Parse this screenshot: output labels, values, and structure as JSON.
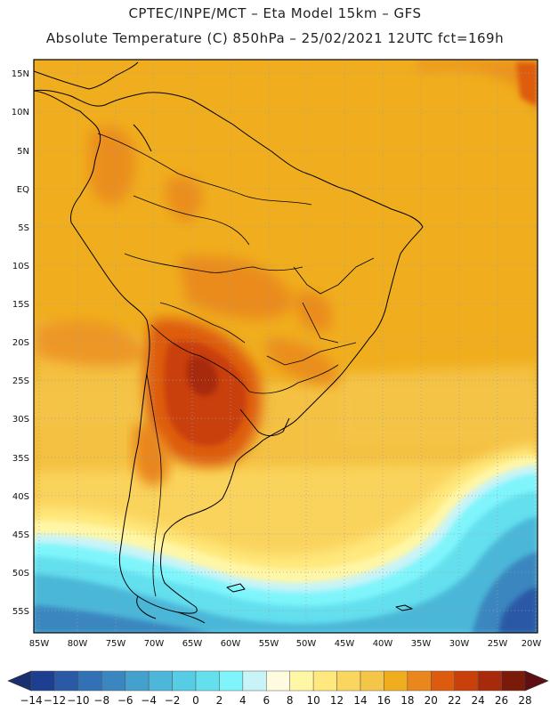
{
  "header": {
    "line1": "CPTEC/INPE/MCT  –   Eta Model 15km  –  GFS",
    "line2": "Absolute Temperature (C) 850hPa  –  25/02/2021  12UTC  fct=169h"
  },
  "map": {
    "lat_labels": [
      "15N",
      "10N",
      "5N",
      "EQ",
      "5S",
      "10S",
      "15S",
      "20S",
      "25S",
      "30S",
      "35S",
      "40S",
      "45S",
      "50S",
      "55S"
    ],
    "lon_labels": [
      "85W",
      "80W",
      "75W",
      "70W",
      "65W",
      "60W",
      "55W",
      "50W",
      "45W",
      "40W",
      "35W",
      "30W",
      "25W",
      "20W"
    ],
    "lat_range": [
      15,
      -55
    ],
    "lon_range": [
      -85,
      -20
    ]
  },
  "colorbar": {
    "labels": [
      "-14",
      "-12",
      "-10",
      "-8",
      "-6",
      "-4",
      "-2",
      "0",
      "2",
      "4",
      "6",
      "8",
      "10",
      "12",
      "14",
      "16",
      "18",
      "20",
      "22",
      "24",
      "26",
      "28"
    ],
    "colors": [
      "#1d3f8f",
      "#2a59a6",
      "#3271b3",
      "#3b86bf",
      "#44a0cc",
      "#4cb7d8",
      "#56cde4",
      "#63dfee",
      "#7ff5fb",
      "#c8f4f8",
      "#fffbe0",
      "#fff6a6",
      "#ffe97e",
      "#fbd65e",
      "#f5c548",
      "#f0ae1e",
      "#e9861c",
      "#dd5b0e",
      "#c9400a",
      "#a82a0a",
      "#7a1a08"
    ]
  }
}
